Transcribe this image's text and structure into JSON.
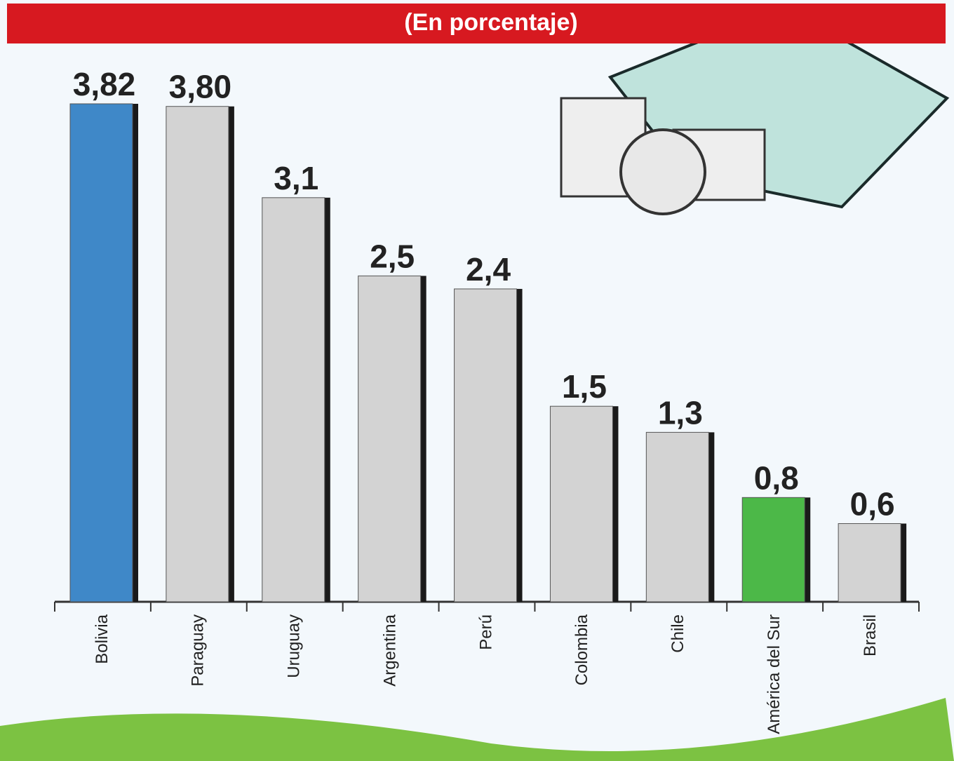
{
  "chart_data": {
    "type": "bar",
    "title": "(En porcentaje)",
    "categories": [
      "Bolivia",
      "Paraguay",
      "Uruguay",
      "Argentina",
      "Perú",
      "Colombia",
      "Chile",
      "América del Sur",
      "Brasil"
    ],
    "values": [
      3.82,
      3.8,
      3.1,
      2.5,
      2.4,
      1.5,
      1.3,
      0.8,
      0.6
    ],
    "value_labels": [
      "3,82",
      "3,80",
      "3,1",
      "2,5",
      "2,4",
      "1,5",
      "1,3",
      "0,8",
      "0,6"
    ],
    "colors": [
      "#3f88c8",
      "#d3d3d3",
      "#d3d3d3",
      "#d3d3d3",
      "#d3d3d3",
      "#d3d3d3",
      "#d3d3d3",
      "#4cb848",
      "#d3d3d3"
    ]
  }
}
